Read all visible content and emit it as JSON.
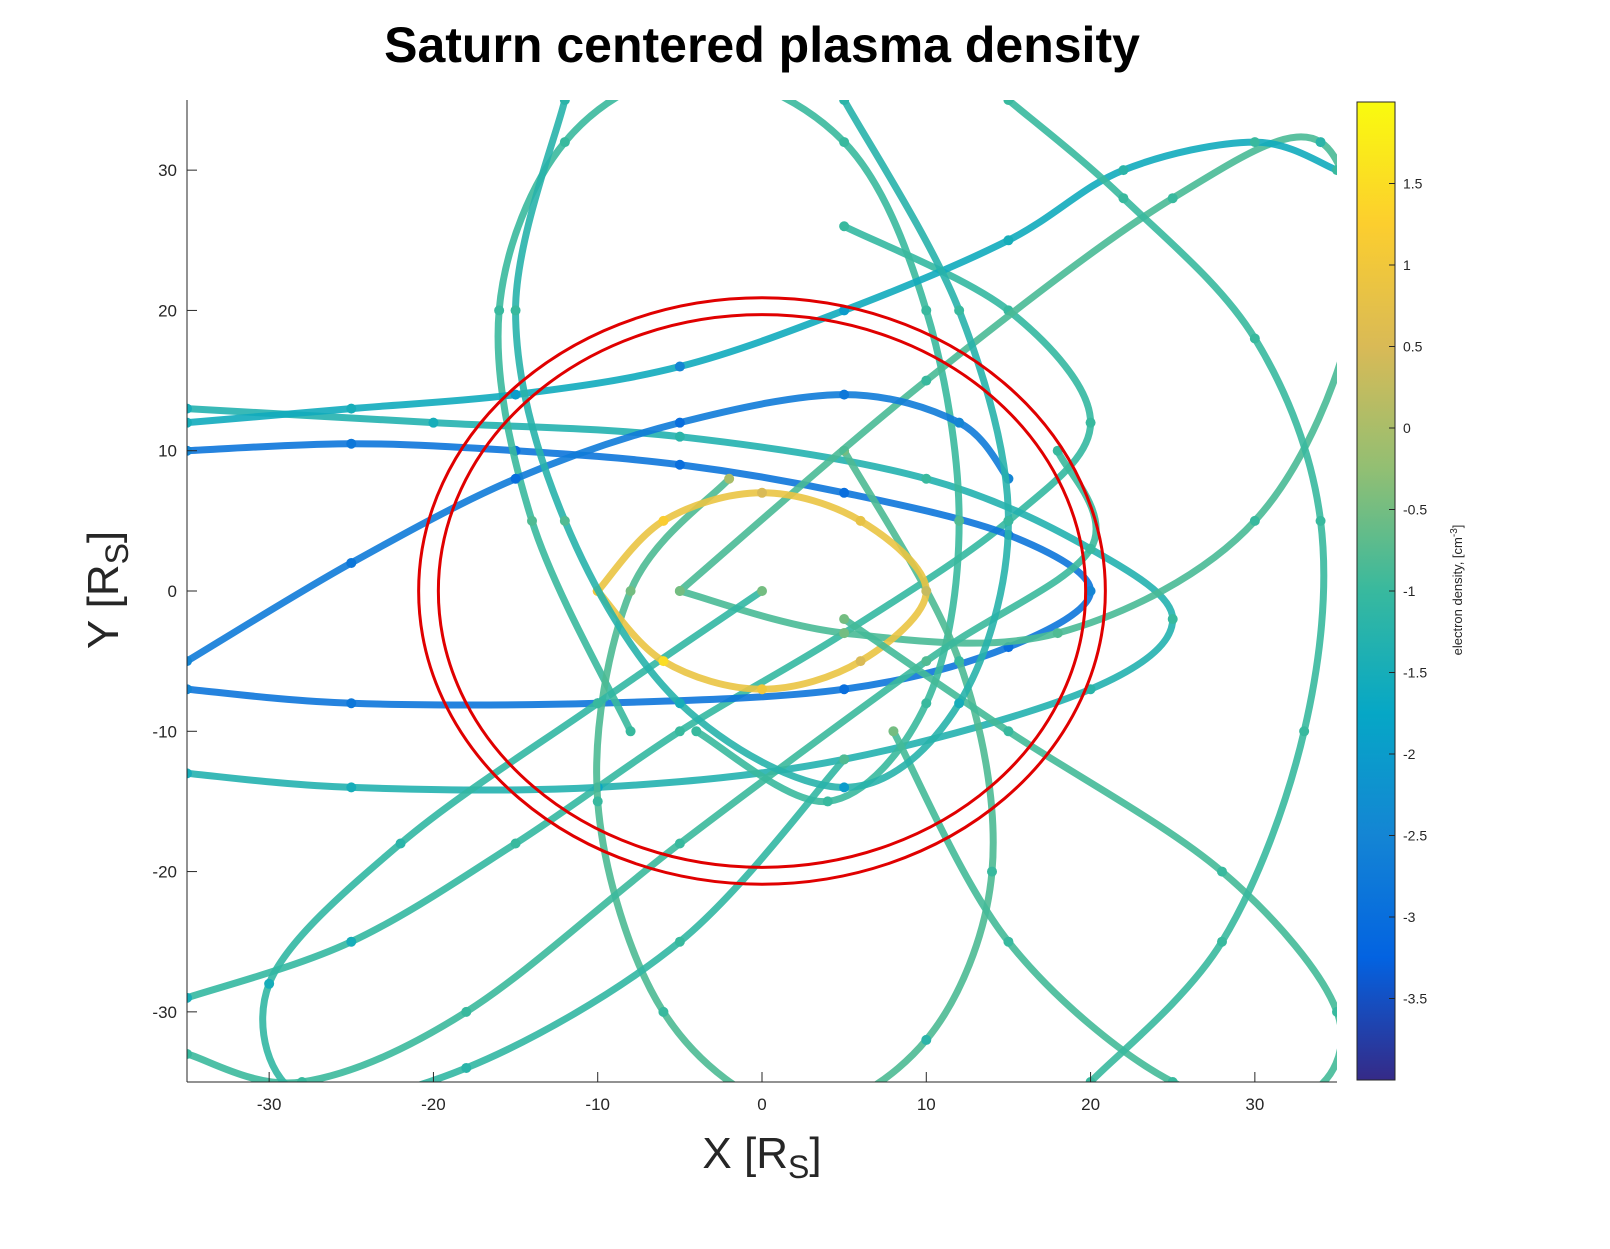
{
  "chart_data": {
    "type": "trajectory",
    "title": "Saturn centered plasma density",
    "xlabel": [
      "X [R",
      "S",
      "]"
    ],
    "ylabel": [
      "Y [R",
      "S",
      "]"
    ],
    "colorbar_label": [
      "electron density, [cm",
      "-3",
      "]"
    ],
    "xlim": [
      -35,
      35
    ],
    "ylim": [
      -35,
      35
    ],
    "xticks": [
      -30,
      -20,
      -10,
      0,
      10,
      20,
      30
    ],
    "yticks": [
      -30,
      -20,
      -10,
      0,
      10,
      20,
      30
    ],
    "clim": [
      -4,
      2
    ],
    "cticks": [
      -3.5,
      -3,
      -2.5,
      -2,
      -1.5,
      -1,
      -0.5,
      0,
      0.5,
      1,
      1.5
    ],
    "colormap": [
      "#352a87",
      "#0363e1",
      "#1485d4",
      "#06a7c6",
      "#38b99e",
      "#92bf73",
      "#d9ba56",
      "#fcce2e",
      "#f9fb0e"
    ],
    "boundaries": [
      {
        "radius": 20.9,
        "color": "#e00000"
      },
      {
        "radius": 19.7,
        "color": "#e00000"
      }
    ],
    "tracks": [
      {
        "x": [
          -35,
          -25,
          -15,
          -5,
          5,
          15,
          20,
          15,
          5
        ],
        "y": [
          -29,
          -25,
          -18,
          -10,
          -3,
          5,
          12,
          20,
          26
        ],
        "values": [
          -1.5,
          -1.5,
          -1,
          -1,
          -0.5,
          -1,
          -1,
          -1,
          -1
        ]
      },
      {
        "x": [
          -35,
          -25,
          -15,
          -5,
          5,
          15,
          20,
          15,
          5,
          -10,
          -25,
          -35
        ],
        "y": [
          10,
          10.5,
          10,
          9,
          7,
          4,
          0,
          -4,
          -7,
          -8,
          -8,
          -7
        ],
        "values": [
          -2.5,
          -2.8,
          -3,
          -3,
          -3,
          -2.8,
          -2.5,
          -3,
          -3,
          -3,
          -2.8,
          -2.5
        ]
      },
      {
        "x": [
          -35,
          -20,
          -5,
          10,
          20,
          25,
          20,
          5,
          -10,
          -25,
          -35
        ],
        "y": [
          13,
          12,
          11,
          8,
          3,
          -2,
          -7,
          -12,
          -14,
          -14,
          -13
        ],
        "values": [
          -1.5,
          -1.5,
          -1.2,
          -1,
          -0.8,
          -1,
          -1.2,
          -1.5,
          -1.8,
          -1.5,
          -1.5
        ]
      },
      {
        "x": [
          -8,
          -14,
          -16,
          -12,
          -4,
          5,
          10,
          12,
          10,
          4,
          -4
        ],
        "y": [
          -10,
          5,
          20,
          32,
          37,
          32,
          20,
          5,
          -8,
          -15,
          -10
        ],
        "values": [
          -1,
          -0.8,
          -1,
          -1,
          -1.2,
          -1,
          -1,
          -0.8,
          -1,
          -1,
          -1
        ]
      },
      {
        "x": [
          5,
          12,
          14,
          10,
          2,
          -6,
          -10,
          -8,
          -2
        ],
        "y": [
          10,
          -5,
          -20,
          -32,
          -37,
          -30,
          -15,
          0,
          8
        ],
        "values": [
          -0.5,
          -1,
          -1,
          -1.2,
          -1.2,
          -1,
          -1,
          -0.5,
          0
        ]
      },
      {
        "x": [
          -5,
          10,
          25,
          34,
          36,
          30,
          18,
          5,
          -5
        ],
        "y": [
          0,
          15,
          28,
          32,
          20,
          5,
          -3,
          -3,
          0
        ],
        "values": [
          -0.5,
          -1,
          -1,
          -1.2,
          -1.2,
          -1,
          -0.8,
          -0.5,
          -0.5
        ]
      },
      {
        "x": [
          -35,
          -28,
          -18,
          -5,
          10,
          20,
          18
        ],
        "y": [
          -33,
          -35,
          -30,
          -18,
          -5,
          3,
          10
        ],
        "values": [
          -1,
          -1,
          -1,
          -1,
          -0.8,
          -1,
          -1
        ]
      },
      {
        "x": [
          35,
          30,
          22,
          15,
          5,
          -5,
          -15,
          -25,
          -35
        ],
        "y": [
          30,
          32,
          30,
          25,
          20,
          16,
          14,
          13,
          12
        ],
        "values": [
          -1,
          -1,
          -1.2,
          -1.5,
          -2,
          -2.5,
          -2,
          -1.5,
          -1.5
        ]
      },
      {
        "x": [
          0,
          -10,
          -22,
          -30,
          -28,
          -18,
          -5,
          5
        ],
        "y": [
          0,
          -8,
          -18,
          -28,
          -36,
          -34,
          -25,
          -12
        ],
        "values": [
          -0.5,
          -1,
          -1.2,
          -1.5,
          -1.5,
          -1.2,
          -1,
          -0.8
        ]
      },
      {
        "x": [
          -10,
          -6,
          0,
          6,
          10,
          6,
          0,
          -6,
          -10
        ],
        "y": [
          0,
          5,
          7,
          5,
          0,
          -5,
          -7,
          -5,
          0
        ],
        "values": [
          1,
          1.2,
          0.5,
          0.8,
          0.3,
          0.5,
          1,
          1.5,
          1
        ]
      },
      {
        "x": [
          5,
          15,
          28,
          35,
          33,
          25,
          15,
          8
        ],
        "y": [
          -2,
          -10,
          -20,
          -30,
          -36,
          -35,
          -25,
          -10
        ],
        "values": [
          -0.5,
          -1,
          -1,
          -1,
          -1.2,
          -1,
          -1,
          -0.5
        ]
      },
      {
        "x": [
          -35,
          -25,
          -15,
          -5,
          5,
          12,
          15
        ],
        "y": [
          -5,
          2,
          8,
          12,
          14,
          12,
          8
        ],
        "values": [
          -2.5,
          -2.8,
          -3,
          -3,
          -2.8,
          -2.5,
          -2.5
        ]
      },
      {
        "x": [
          20,
          28,
          33,
          34,
          30,
          22,
          15
        ],
        "y": [
          -35,
          -25,
          -10,
          5,
          18,
          28,
          35
        ],
        "values": [
          -1,
          -1,
          -1,
          -1,
          -1,
          -1,
          -1
        ]
      },
      {
        "x": [
          -12,
          -15,
          -12,
          -5,
          5,
          12,
          15,
          12,
          5
        ],
        "y": [
          35,
          20,
          5,
          -8,
          -14,
          -8,
          5,
          20,
          35
        ],
        "values": [
          -1.2,
          -1,
          -0.8,
          -1.5,
          -2,
          -1.5,
          -1,
          -1,
          -1.2
        ]
      }
    ]
  }
}
